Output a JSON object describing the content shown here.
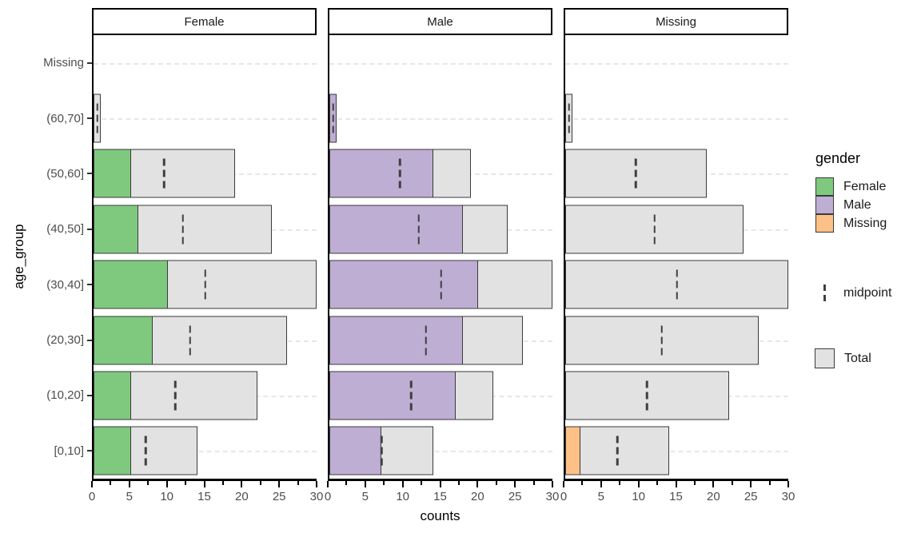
{
  "chart_data": {
    "type": "bar",
    "orientation": "horizontal",
    "facet_variable": "gender",
    "facets": [
      "Female",
      "Male",
      "Missing"
    ],
    "categories": [
      "Missing",
      "(60,70]",
      "(50,60]",
      "(40,50]",
      "(30,40]",
      "(20,30]",
      "(10,20]",
      "[0,10]"
    ],
    "categories_order": "top-to-bottom",
    "xlabel": "counts",
    "ylabel": "age_group",
    "xlim": [
      0,
      30
    ],
    "x_ticks": [
      0,
      5,
      10,
      15,
      20,
      25,
      30
    ],
    "x_minor_ticks": [
      2.5,
      7.5,
      12.5,
      17.5,
      22.5,
      27.5
    ],
    "grid": "horizontal-dashed",
    "totals": [
      0,
      1,
      19,
      24,
      30,
      26,
      22,
      14
    ],
    "midpoints": [
      null,
      0.5,
      9.5,
      12,
      15,
      13,
      11,
      7
    ],
    "series": [
      {
        "name": "Female",
        "color": "#7FC97F",
        "values": [
          0,
          0,
          5,
          6,
          10,
          8,
          5,
          5
        ]
      },
      {
        "name": "Male",
        "color": "#BEAED4",
        "values": [
          0,
          1,
          14,
          18,
          20,
          18,
          17,
          7
        ]
      },
      {
        "name": "Missing",
        "color": "#FDC086",
        "values": [
          0,
          0,
          0,
          0,
          0,
          0,
          0,
          2
        ]
      }
    ],
    "total_color": "#E2E2E2"
  },
  "legend": {
    "title": "gender",
    "entries": [
      {
        "label": "Female",
        "color": "#7FC97F"
      },
      {
        "label": "Male",
        "color": "#BEAED4"
      },
      {
        "label": "Missing",
        "color": "#FDC086"
      }
    ],
    "midpoint_label": "midpoint",
    "total_label": "Total",
    "total_color": "#E2E2E2"
  },
  "colors": {
    "bar_border": "#3A3A3A",
    "axis_text": "#4D4D4D",
    "axis_line": "#000000",
    "gridline": "#E7E7E7",
    "background": "#FFFFFF"
  }
}
